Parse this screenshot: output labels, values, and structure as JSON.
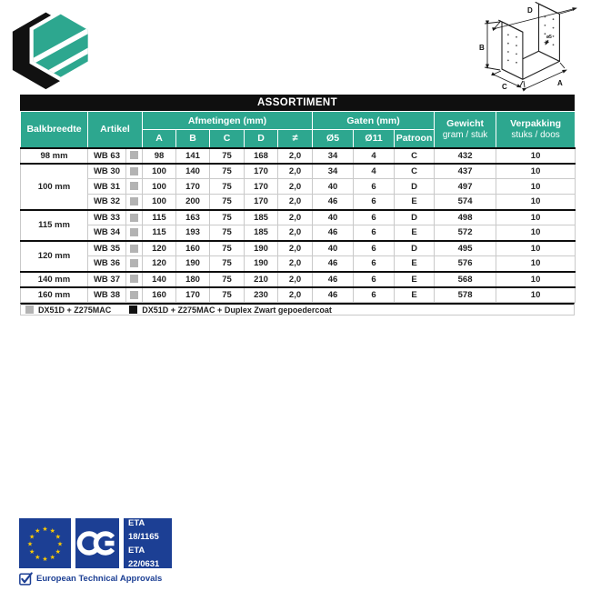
{
  "colors": {
    "teal": "#2da78f",
    "title_bar_black": "#0f0f0f",
    "eu_blue": "#1c3f94",
    "star_yellow": "#ffcc00",
    "swatch_gray": "#b3b3b3",
    "swatch_black": "#111111"
  },
  "diagram": {
    "labels": {
      "d": "D",
      "b": "B",
      "c": "C",
      "a": "A",
      "hole": "ø5"
    }
  },
  "table": {
    "title": "ASSORTIMENT",
    "headers": {
      "balkbreedte": "Balkbreedte",
      "artikel": "Artikel",
      "afmetingen": "Afmetingen (mm)",
      "afmetingen_subs": [
        "A",
        "B",
        "C",
        "D",
        "≠"
      ],
      "gaten": "Gaten (mm)",
      "gaten_subs": [
        "Ø5",
        "Ø11",
        "Patroon"
      ],
      "gewicht_title": "Gewicht",
      "gewicht_sub": "gram / stuk",
      "verpakking_title": "Verpakking",
      "verpakking_sub": "stuks / doos"
    },
    "groups": [
      {
        "balkbreedte": "98 mm",
        "rows": [
          {
            "artikel": "WB 63",
            "finish": "gray",
            "a": "98",
            "b": "141",
            "c": "75",
            "d": "168",
            "t": "2,0",
            "o5": "34",
            "o11": "4",
            "patroon": "C",
            "gewicht": "432",
            "verpakking": "10"
          }
        ]
      },
      {
        "balkbreedte": "100 mm",
        "rows": [
          {
            "artikel": "WB 30",
            "finish": "gray",
            "a": "100",
            "b": "140",
            "c": "75",
            "d": "170",
            "t": "2,0",
            "o5": "34",
            "o11": "4",
            "patroon": "C",
            "gewicht": "437",
            "verpakking": "10"
          },
          {
            "artikel": "WB 31",
            "finish": "gray",
            "a": "100",
            "b": "170",
            "c": "75",
            "d": "170",
            "t": "2,0",
            "o5": "40",
            "o11": "6",
            "patroon": "D",
            "gewicht": "497",
            "verpakking": "10"
          },
          {
            "artikel": "WB 32",
            "finish": "gray",
            "a": "100",
            "b": "200",
            "c": "75",
            "d": "170",
            "t": "2,0",
            "o5": "46",
            "o11": "6",
            "patroon": "E",
            "gewicht": "574",
            "verpakking": "10"
          }
        ]
      },
      {
        "balkbreedte": "115 mm",
        "rows": [
          {
            "artikel": "WB 33",
            "finish": "gray",
            "a": "115",
            "b": "163",
            "c": "75",
            "d": "185",
            "t": "2,0",
            "o5": "40",
            "o11": "6",
            "patroon": "D",
            "gewicht": "498",
            "verpakking": "10"
          },
          {
            "artikel": "WB 34",
            "finish": "gray",
            "a": "115",
            "b": "193",
            "c": "75",
            "d": "185",
            "t": "2,0",
            "o5": "46",
            "o11": "6",
            "patroon": "E",
            "gewicht": "572",
            "verpakking": "10"
          }
        ]
      },
      {
        "balkbreedte": "120 mm",
        "rows": [
          {
            "artikel": "WB 35",
            "finish": "gray",
            "a": "120",
            "b": "160",
            "c": "75",
            "d": "190",
            "t": "2,0",
            "o5": "40",
            "o11": "6",
            "patroon": "D",
            "gewicht": "495",
            "verpakking": "10"
          },
          {
            "artikel": "WB 36",
            "finish": "gray",
            "a": "120",
            "b": "190",
            "c": "75",
            "d": "190",
            "t": "2,0",
            "o5": "46",
            "o11": "6",
            "patroon": "E",
            "gewicht": "576",
            "verpakking": "10"
          }
        ]
      },
      {
        "balkbreedte": "140 mm",
        "rows": [
          {
            "artikel": "WB 37",
            "finish": "gray",
            "a": "140",
            "b": "180",
            "c": "75",
            "d": "210",
            "t": "2,0",
            "o5": "46",
            "o11": "6",
            "patroon": "E",
            "gewicht": "568",
            "verpakking": "10"
          }
        ]
      },
      {
        "balkbreedte": "160 mm",
        "rows": [
          {
            "artikel": "WB 38",
            "finish": "gray",
            "a": "160",
            "b": "170",
            "c": "75",
            "d": "230",
            "t": "2,0",
            "o5": "46",
            "o11": "6",
            "patroon": "E",
            "gewicht": "578",
            "verpakking": "10"
          }
        ]
      }
    ],
    "legend": [
      {
        "swatch": "gray",
        "label": "DX51D + Z275MAC"
      },
      {
        "swatch": "black",
        "label": "DX51D + Z275MAC + Duplex Zwart gepoedercoat"
      }
    ]
  },
  "badges": {
    "eta_lines": [
      "ETA 18/1165",
      "ETA 22/0631"
    ],
    "approvals": "European Technical Approvals"
  }
}
